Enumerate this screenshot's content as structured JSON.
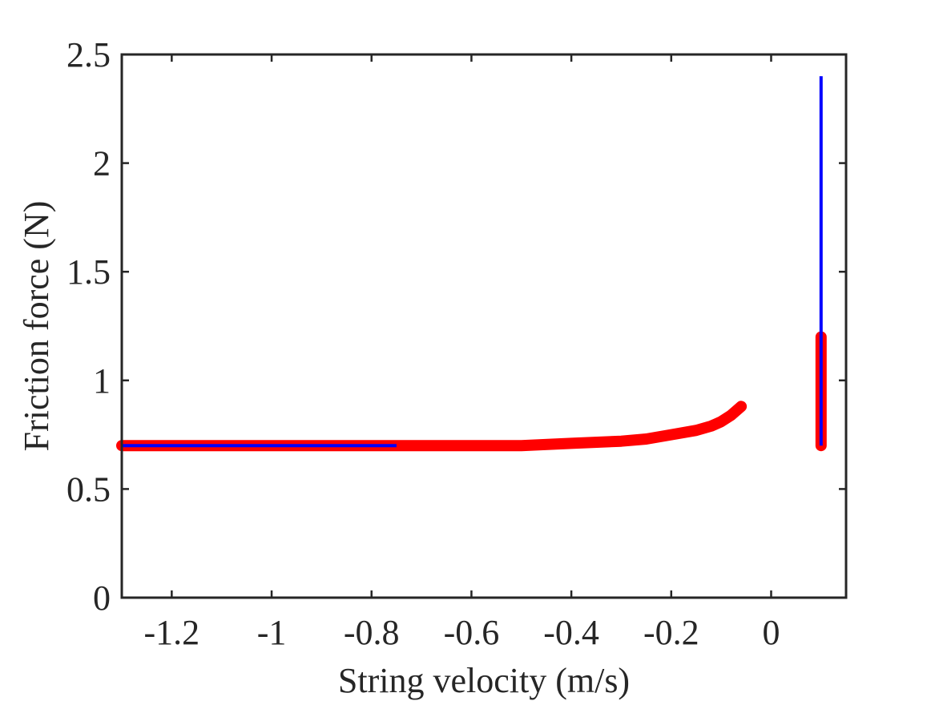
{
  "chart_data": {
    "type": "line",
    "title": "",
    "xlabel": "String velocity (m/s)",
    "ylabel": "Friction force (N)",
    "xlim": [
      -1.3,
      0.15
    ],
    "ylim": [
      0,
      2.5
    ],
    "xticks": [
      -1.2,
      -1,
      -0.8,
      -0.6,
      -0.4,
      -0.2,
      0
    ],
    "xtick_labels": [
      "-1.2",
      "-1",
      "-0.8",
      "-0.6",
      "-0.4",
      "-0.2",
      "0"
    ],
    "yticks": [
      0,
      0.5,
      1,
      1.5,
      2,
      2.5
    ],
    "ytick_labels": [
      "0",
      "0.5",
      "1",
      "1.5",
      "2",
      "2.5"
    ],
    "grid": false,
    "box": true,
    "series": [
      {
        "color": "#ff0000",
        "style": "thick-markers",
        "segments": [
          {
            "x": [
              -1.3,
              -1.2,
              -1.0,
              -0.8,
              -0.6,
              -0.5,
              -0.4,
              -0.3,
              -0.25,
              -0.2,
              -0.15,
              -0.12,
              -0.1,
              -0.08,
              -0.06
            ],
            "y": [
              0.7,
              0.7,
              0.7,
              0.7,
              0.7,
              0.7,
              0.71,
              0.72,
              0.73,
              0.75,
              0.77,
              0.79,
              0.81,
              0.84,
              0.88
            ]
          },
          {
            "x": [
              0.1,
              0.1
            ],
            "y": [
              0.7,
              1.2
            ]
          }
        ]
      },
      {
        "color": "#0000ff",
        "style": "line",
        "segments": [
          {
            "x": [
              -1.3,
              -0.75
            ],
            "y": [
              0.7,
              0.7
            ]
          },
          {
            "x": [
              0.1,
              0.1
            ],
            "y": [
              0.7,
              2.4
            ]
          }
        ]
      }
    ]
  }
}
